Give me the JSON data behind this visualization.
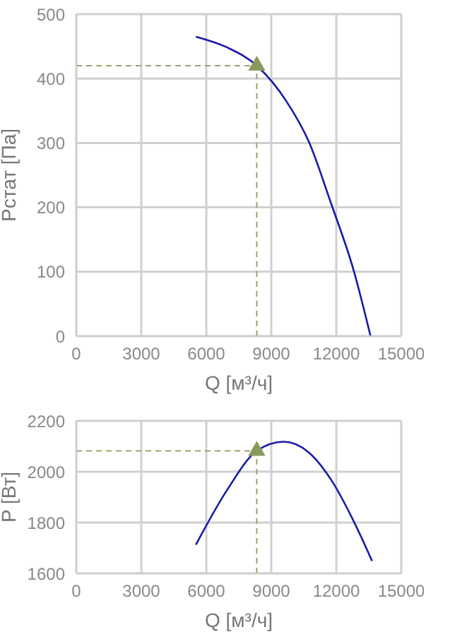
{
  "chart_data": [
    {
      "type": "line",
      "xlabel": "Q [м³/ч]",
      "ylabel": "Pстат [Па]",
      "xlim": [
        0,
        15000
      ],
      "xticks": [
        0,
        3000,
        6000,
        9000,
        12000,
        15000
      ],
      "ylim": [
        0,
        500
      ],
      "yticks": [
        0,
        100,
        200,
        300,
        400,
        500
      ],
      "grid": true,
      "series": [
        {
          "color": "#1a1aa6",
          "marker": "none",
          "x": [
            5520,
            6980,
            8330,
            9690,
            10730,
            11770,
            12810,
            13580
          ],
          "values": [
            465,
            448,
            420,
            365,
            302,
            205,
            101,
            0
          ]
        },
        {
          "type": "scatter",
          "color": "#8a9a5b",
          "marker": "triangle",
          "x": [
            8330
          ],
          "values": [
            420
          ]
        }
      ],
      "ref_lines": [
        {
          "axis": "x",
          "value": 8330,
          "color": "#a0a070",
          "line_style": "dashed"
        },
        {
          "axis": "y",
          "value": 420,
          "color": "#a0a070",
          "line_style": "dashed"
        }
      ]
    },
    {
      "type": "line",
      "xlabel": "Q [м³/ч]",
      "ylabel": "P [Вт]",
      "xlim": [
        0,
        15000
      ],
      "xticks": [
        0,
        3000,
        6000,
        9000,
        12000,
        15000
      ],
      "ylim": [
        1600,
        2200
      ],
      "yticks": [
        1600,
        1800,
        2000,
        2200
      ],
      "grid": true,
      "series": [
        {
          "color": "#1a1aa6",
          "marker": "none",
          "x": [
            5520,
            6980,
            8330,
            9580,
            10730,
            11770,
            12810,
            13650
          ],
          "values": [
            1713,
            1931,
            2082,
            2118,
            2076,
            1967,
            1804,
            1649
          ]
        },
        {
          "type": "scatter",
          "color": "#8a9a5b",
          "marker": "triangle",
          "x": [
            8330
          ],
          "values": [
            2082
          ]
        }
      ],
      "ref_lines": [
        {
          "axis": "x",
          "value": 8330,
          "color": "#a0a070",
          "line_style": "dashed"
        },
        {
          "axis": "y",
          "value": 2082,
          "color": "#a0a070",
          "line_style": "dashed"
        }
      ]
    }
  ]
}
